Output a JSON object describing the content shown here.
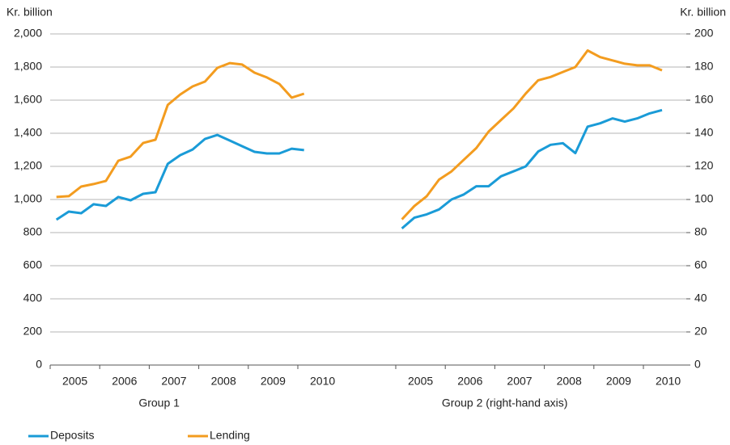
{
  "chart_data": {
    "type": "line",
    "ylabel": "Kr. billion",
    "y2label": "Kr. billion",
    "ylim": [
      0,
      2000
    ],
    "yticks": [
      0,
      200,
      400,
      600,
      800,
      {
        "value": 1000,
        "label": "1,000"
      },
      {
        "value": 1200,
        "label": "1,200"
      },
      {
        "value": 1400,
        "label": "1,400"
      },
      {
        "value": 1600,
        "label": "1,600"
      },
      {
        "value": 1800,
        "label": "1,800"
      },
      {
        "value": 2000,
        "label": "2,000"
      }
    ],
    "y2lim": [
      0,
      200
    ],
    "y2ticks": [
      0,
      20,
      40,
      60,
      80,
      100,
      120,
      140,
      160,
      180,
      200
    ],
    "grid": true,
    "legend": "bottom-left",
    "groups": [
      {
        "label": "Group 1",
        "categories": [
          "2005",
          "2006",
          "2007",
          "2008",
          "2009",
          "2010"
        ],
        "series": [
          {
            "name": "Deposits",
            "color": "#1a9bd7",
            "values": [
              878,
              927,
              917,
              971,
              961,
              1015,
              995,
              1034,
              1044,
              1215,
              1268,
              1302,
              1366,
              1390,
              1356,
              1322,
              1288,
              1278,
              1278,
              1307,
              1298
            ]
          },
          {
            "name": "Lending",
            "color": "#f39c1f",
            "values": [
              1015,
              1020,
              1078,
              1093,
              1112,
              1234,
              1259,
              1341,
              1361,
              1571,
              1634,
              1683,
              1712,
              1795,
              1824,
              1815,
              1766,
              1737,
              1698,
              1615,
              1639
            ]
          }
        ]
      },
      {
        "label": "Group 2 (right-hand axis)",
        "categories": [
          "2005",
          "2006",
          "2007",
          "2008",
          "2009",
          "2010"
        ],
        "series": [
          {
            "name": "Deposits",
            "color": "#1a9bd7",
            "axis": "y2",
            "values": [
              82.5,
              89,
              91,
              94,
              100,
              103,
              108,
              108,
              114,
              117,
              120,
              129,
              133,
              134,
              128,
              144,
              146,
              149,
              147,
              149,
              152,
              154
            ]
          },
          {
            "name": "Lending",
            "color": "#f39c1f",
            "axis": "y2",
            "values": [
              88,
              96,
              102,
              112,
              117,
              124,
              131,
              141,
              148,
              155,
              164,
              172,
              174,
              177,
              180,
              190,
              186,
              184,
              182,
              181,
              181,
              178
            ]
          }
        ]
      }
    ]
  }
}
